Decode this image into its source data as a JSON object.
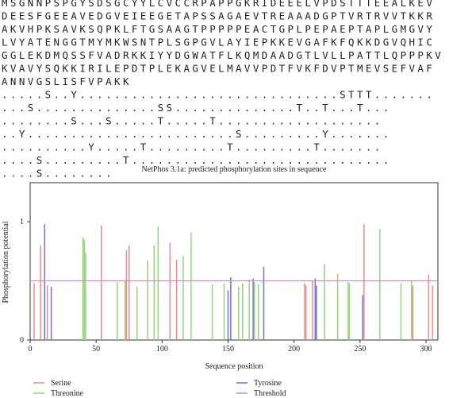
{
  "sequence_lines": [
    "MSGNNPSPGYSDSGCYYLCVCCRPAPPGKRIDEEELVPDSTTTEEALKEV",
    "DEESFGEEAVEDGVEIEEGETAPSSAGAEVTREAAADGPTVRTRVVTKKR",
    "AKVHPKSAVKSQPKLFTGSAAGTPPPPPEACTGPLPEPAEPTAPLGMGVY",
    "LVYATENGGTMYMKWSNTPLSGPGVLAYIEPKKEVGAFKFQKKDGVQHIC",
    "GGLEKDMQSSFVADRKKIYYDGWATFLKQMDAADGTLVLLPATTLQPPPKV",
    "KVAVYSQKKIRILEPDTPLEKAGVELMAVVPDTFVKFDVPTMEVSEFVAF",
    "ANNVGSLISFVPAKK",
    ".....S..Y..............................STTT.......",
    "...S..............SS..............T..T...T...",
    "........S...S.....T.....T...................",
    "..Y........................S.........Y.......",
    "..........Y.....T.........T.........T.......",
    "....S.........T..............................",
    "....S........"
  ],
  "chart_data": {
    "type": "bar",
    "title": "NetPhos 3.1a: predicted phosphorylation sites in sequence",
    "x_label": "Sequence position",
    "y_label": "Phosphorylation potential",
    "xlim": [
      0,
      309
    ],
    "ylim": [
      0,
      1.33
    ],
    "xticks": [
      0,
      50,
      100,
      150,
      200,
      250,
      300
    ],
    "yticks": [
      0,
      1
    ],
    "series": [
      {
        "name": "Serine",
        "color": "#f08a8a",
        "x": [
          3,
          8,
          11,
          13,
          54,
          73,
          75,
          106,
          111,
          208,
          209,
          214,
          253,
          290,
          302,
          305
        ],
        "values": [
          0.48,
          0.8,
          0.5,
          0.46,
          0.97,
          0.76,
          0.8,
          0.82,
          0.68,
          0.48,
          0.46,
          0.5,
          0.98,
          0.46,
          0.55,
          0.46
        ]
      },
      {
        "name": "Threonine",
        "color": "#98d27a",
        "x": [
          40,
          41,
          42,
          66,
          72,
          81,
          89,
          94,
          97,
          116,
          122,
          138,
          147,
          158,
          161,
          166,
          170,
          173,
          223,
          233,
          241,
          242,
          265,
          281,
          289
        ],
        "values": [
          0.87,
          0.85,
          0.74,
          0.49,
          0.5,
          0.45,
          0.67,
          0.8,
          0.96,
          0.71,
          0.91,
          0.47,
          0.48,
          0.45,
          0.48,
          0.51,
          0.49,
          0.47,
          0.64,
          0.56,
          0.49,
          0.48,
          0.94,
          0.48,
          0.5
        ]
      },
      {
        "name": "Tyrosine",
        "color": "#7474cc",
        "x": [
          11,
          16,
          150,
          152,
          169,
          177,
          216,
          217,
          252
        ],
        "values": [
          0.98,
          0.45,
          0.42,
          0.53,
          0.52,
          0.62,
          0.52,
          0.46,
          0.38
        ]
      }
    ],
    "threshold": {
      "name": "Threshold",
      "color": "#d57fd5",
      "value": 0.5
    }
  }
}
